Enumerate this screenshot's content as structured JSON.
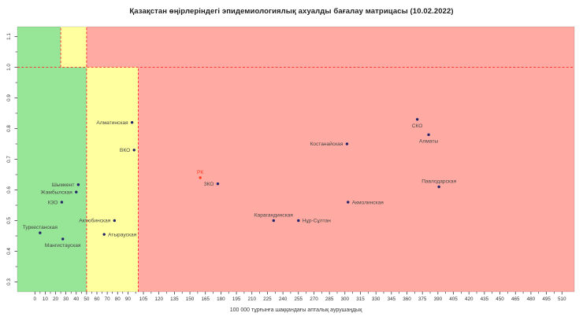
{
  "colors": {
    "background": "#ffffff",
    "green_zone": "#97e597",
    "yellow_zone": "#ffff9f",
    "red_zone": "#ffaba3",
    "boundary_line": "#ff2b2b",
    "frame": "rgba(0,0,0,0.28)",
    "tick": "#222222",
    "tick_label": "#333333",
    "point": "#24246b",
    "point_label": "#454545",
    "highlight_point": "#ff3a20",
    "highlight_label": "#ff3a20"
  },
  "chart_data": {
    "type": "scatter",
    "title": "Қазақстан өңірлеріндегі эпидемиологиялық ахуалды бағалау матрицасы (10.02.2022)",
    "xlabel": "100 000 тұрғынға шаққандағы апталық аурушаңдық",
    "ylabel": "",
    "xlim": [
      -17,
      522
    ],
    "ylim": [
      0.268,
      1.132
    ],
    "grid": false,
    "legend": "none",
    "x_ticks": [
      0,
      10,
      20,
      30,
      40,
      50,
      60,
      70,
      80,
      90,
      105,
      120,
      135,
      150,
      165,
      180,
      195,
      210,
      225,
      240,
      255,
      270,
      285,
      300,
      315,
      330,
      345,
      360,
      375,
      390,
      405,
      420,
      435,
      450,
      465,
      480,
      495,
      510
    ],
    "y_ticks": [
      "0.3",
      "0.4",
      "0.5",
      "0.6",
      "0.7",
      "0.8",
      "0.9",
      "1.0",
      "1.1"
    ],
    "y_tick_values": [
      0.3,
      0.4,
      0.5,
      0.6,
      0.7,
      0.8,
      0.9,
      1.0,
      1.1
    ],
    "zones": [
      {
        "zone": "green",
        "x": [
          -17,
          50
        ],
        "y": [
          0.268,
          1.0
        ]
      },
      {
        "zone": "green",
        "x": [
          -17,
          25
        ],
        "y": [
          1.0,
          1.132
        ]
      },
      {
        "zone": "yellow",
        "x": [
          50,
          100
        ],
        "y": [
          0.268,
          1.0
        ]
      },
      {
        "zone": "yellow",
        "x": [
          25,
          50
        ],
        "y": [
          1.0,
          1.132
        ]
      },
      {
        "zone": "red",
        "x": [
          100,
          522
        ],
        "y": [
          0.268,
          1.0
        ]
      },
      {
        "zone": "red",
        "x": [
          50,
          522
        ],
        "y": [
          1.0,
          1.132
        ]
      }
    ],
    "threshold_segments": [
      {
        "x1": -17,
        "y1": 1.0,
        "x2": 522,
        "y2": 1.0
      },
      {
        "x1": 50,
        "y1": 0.268,
        "x2": 50,
        "y2": 1.132
      },
      {
        "x1": 25,
        "y1": 1.0,
        "x2": 25,
        "y2": 1.132
      },
      {
        "x1": 100,
        "y1": 0.268,
        "x2": 100,
        "y2": 1.0
      }
    ],
    "points": [
      {
        "label": "Шымкент",
        "x": 42,
        "y": 0.617,
        "pos": "left",
        "highlight": false
      },
      {
        "label": "Жамбылская",
        "x": 40,
        "y": 0.593,
        "pos": "left",
        "highlight": false
      },
      {
        "label": "КЗО",
        "x": 26,
        "y": 0.56,
        "pos": "left",
        "highlight": false
      },
      {
        "label": "Туркестанская",
        "x": 5,
        "y": 0.46,
        "pos": "above",
        "highlight": false
      },
      {
        "label": "Мангистауская",
        "x": 27,
        "y": 0.44,
        "pos": "below",
        "highlight": false
      },
      {
        "label": "Алматинская",
        "x": 94,
        "y": 0.82,
        "pos": "left",
        "highlight": false
      },
      {
        "label": "ВКО",
        "x": 96,
        "y": 0.73,
        "pos": "left",
        "highlight": false
      },
      {
        "label": "Актюбинская",
        "x": 77,
        "y": 0.5,
        "pos": "left",
        "highlight": false
      },
      {
        "label": "Атырауская",
        "x": 67,
        "y": 0.455,
        "pos": "right",
        "highlight": false
      },
      {
        "label": "РК",
        "x": 160,
        "y": 0.64,
        "pos": "above",
        "highlight": true
      },
      {
        "label": "ЗКО",
        "x": 177,
        "y": 0.62,
        "pos": "left",
        "highlight": false
      },
      {
        "label": "Карагандинская",
        "x": 231,
        "y": 0.5,
        "pos": "above",
        "highlight": false
      },
      {
        "label": "Нұр-Сұлтан",
        "x": 255,
        "y": 0.5,
        "pos": "right",
        "highlight": false
      },
      {
        "label": "Костанайская",
        "x": 302,
        "y": 0.75,
        "pos": "left",
        "highlight": false
      },
      {
        "label": "Акмолинская",
        "x": 303,
        "y": 0.56,
        "pos": "right",
        "highlight": false
      },
      {
        "label": "СКО",
        "x": 370,
        "y": 0.83,
        "pos": "below",
        "highlight": false
      },
      {
        "label": "Алматы",
        "x": 381,
        "y": 0.78,
        "pos": "below",
        "highlight": false
      },
      {
        "label": "Павлодарская",
        "x": 391,
        "y": 0.61,
        "pos": "above",
        "highlight": false
      }
    ]
  }
}
